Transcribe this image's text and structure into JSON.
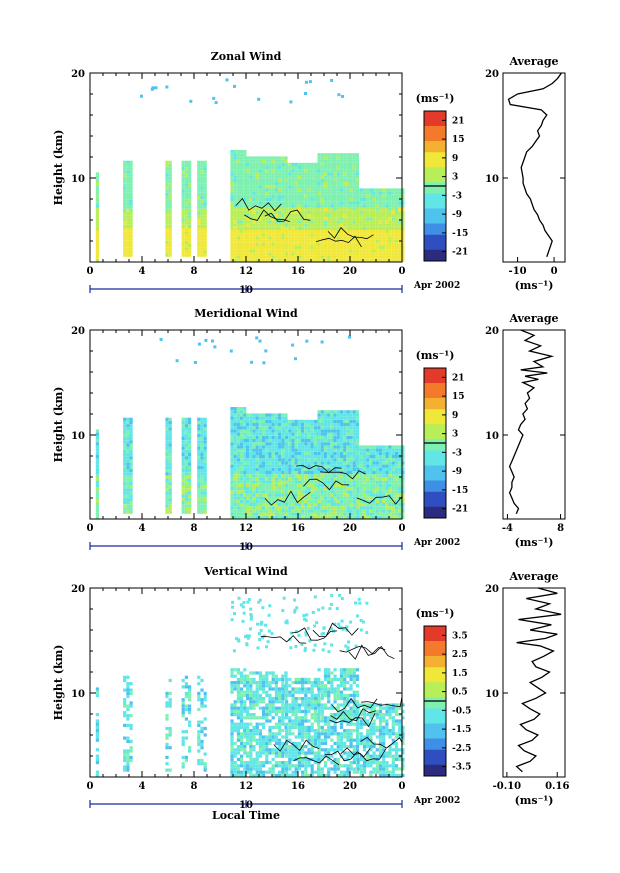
{
  "xlabel": "Local Time",
  "date_label": "Apr 2002",
  "colors": {
    "scale": [
      "#2b2b80",
      "#2f4fc0",
      "#3f8fe6",
      "#4fc2ee",
      "#60e6e6",
      "#7ef0b0",
      "#b8ee58",
      "#f0e838",
      "#f4b030",
      "#f27a2a",
      "#e43a2a"
    ]
  },
  "chart_data": [
    {
      "type": "heatmap",
      "title": "Zonal Wind",
      "ylabel": "Height (km)",
      "yticks": [
        "20",
        "10"
      ],
      "xticks": [
        "0",
        "4",
        "8",
        "12",
        "16",
        "20",
        "0"
      ],
      "date_tick": "10",
      "xlim": [
        0,
        24
      ],
      "ylim": [
        2,
        20
      ],
      "colorbar": {
        "unit": "(ms⁻¹)",
        "ticks": [
          "21",
          "15",
          "9",
          "3",
          "-3",
          "-9",
          "-15",
          "-21"
        ],
        "range": [
          -24,
          24
        ]
      },
      "profile": {
        "title": "Average",
        "ticks": [
          "-10",
          "0"
        ],
        "unit": "(ms⁻¹)",
        "xlim": [
          -14,
          3
        ],
        "x": [
          -2.0,
          -1.5,
          -1.0,
          -0.5,
          -1.5,
          -2.5,
          -3.0,
          -4.0,
          -4.5,
          -5.5,
          -6.0,
          -6.5,
          -7.5,
          -8.0,
          -8.5,
          -8.5,
          -9.0,
          -8.0,
          -7.5,
          -6.0,
          -5.0,
          -4.0,
          -4.5,
          -3.5,
          -3.0,
          -2.0,
          -3.5,
          -12.0,
          -12.5,
          -10.0,
          -3.0,
          -0.5,
          1.0,
          2.0
        ],
        "y": [
          2.5,
          3.0,
          3.5,
          4.0,
          4.5,
          5.0,
          5.5,
          6.0,
          6.5,
          7.0,
          7.5,
          8.0,
          8.5,
          9.0,
          9.5,
          10.0,
          11.0,
          12.0,
          12.5,
          13.0,
          13.5,
          14.0,
          14.5,
          15.0,
          15.5,
          16.0,
          16.5,
          17.0,
          17.5,
          18.0,
          18.5,
          19.0,
          19.5,
          20.0
        ]
      }
    },
    {
      "type": "heatmap",
      "title": "Meridional Wind",
      "ylabel": "Height (km)",
      "yticks": [
        "20",
        "10"
      ],
      "xticks": [
        "0",
        "4",
        "8",
        "12",
        "16",
        "20",
        "0"
      ],
      "date_tick": "10",
      "xlim": [
        0,
        24
      ],
      "ylim": [
        2,
        20
      ],
      "colorbar": {
        "unit": "(ms⁻¹)",
        "ticks": [
          "21",
          "15",
          "9",
          "3",
          "-3",
          "-9",
          "-15",
          "-21"
        ],
        "range": [
          -24,
          24
        ]
      },
      "profile": {
        "title": "Average",
        "ticks": [
          "-4",
          "8"
        ],
        "unit": "(ms⁻¹)",
        "xlim": [
          -5,
          9
        ],
        "x": [
          -2.0,
          -1.5,
          -2.5,
          -3.0,
          -3.5,
          -3.0,
          -3.0,
          -2.5,
          -3.0,
          -3.5,
          -3.0,
          -2.5,
          -2.0,
          -1.5,
          -1.0,
          -0.5,
          -1.5,
          -1.0,
          0.0,
          -0.5,
          0.5,
          0.0,
          1.0,
          0.5,
          2.0,
          -0.5,
          3.0,
          0.0,
          5.0,
          -1.0,
          4.0,
          2.0,
          6.0,
          1.0,
          3.5,
          0.0,
          2.0,
          -1.0
        ],
        "y": [
          2.5,
          3.0,
          3.5,
          4.0,
          4.5,
          5.0,
          5.5,
          6.0,
          6.5,
          7.0,
          7.5,
          8.0,
          8.5,
          9.0,
          9.5,
          10.0,
          10.5,
          11.0,
          11.5,
          12.0,
          12.5,
          13.0,
          13.5,
          14.0,
          14.5,
          15.0,
          15.3,
          15.6,
          15.9,
          16.2,
          16.5,
          17.0,
          17.5,
          18.0,
          18.5,
          19.0,
          19.5,
          20.0
        ]
      }
    },
    {
      "type": "heatmap",
      "title": "Vertical Wind",
      "ylabel": "Height (km)",
      "yticks": [
        "20",
        "10"
      ],
      "xticks": [
        "0",
        "4",
        "8",
        "12",
        "16",
        "20",
        "0"
      ],
      "date_tick": "10",
      "xlim": [
        0,
        24
      ],
      "ylim": [
        2,
        20
      ],
      "colorbar": {
        "unit": "(ms⁻¹)",
        "ticks": [
          "3.5",
          "2.5",
          "1.5",
          "0.5",
          "-0.5",
          "-1.5",
          "-2.5",
          "-3.5"
        ],
        "range": [
          -4,
          4
        ]
      },
      "profile": {
        "title": "Average",
        "ticks": [
          "-0.10",
          "0.16"
        ],
        "unit": "(ms⁻¹)",
        "xlim": [
          -0.12,
          0.2
        ],
        "x": [
          -0.02,
          -0.05,
          0.02,
          0.05,
          -0.01,
          -0.04,
          0.03,
          0.06,
          0.0,
          -0.03,
          0.04,
          0.07,
          0.02,
          -0.02,
          0.05,
          0.1,
          0.06,
          0.02,
          0.08,
          0.12,
          0.05,
          0.03,
          0.09,
          0.14,
          0.07,
          -0.05,
          0.1,
          0.16,
          0.02,
          0.13,
          -0.04,
          0.18,
          0.05,
          0.12,
          0.0,
          0.16,
          0.06
        ],
        "y": [
          2.5,
          3.0,
          3.5,
          4.0,
          4.5,
          5.0,
          5.5,
          6.0,
          6.5,
          7.0,
          7.5,
          8.0,
          8.5,
          9.0,
          9.5,
          10.0,
          10.5,
          11.0,
          11.5,
          12.0,
          12.5,
          13.0,
          13.5,
          14.0,
          14.5,
          14.8,
          15.2,
          15.6,
          16.0,
          16.5,
          17.0,
          17.5,
          18.0,
          18.5,
          19.0,
          19.5,
          20.0
        ]
      }
    }
  ]
}
